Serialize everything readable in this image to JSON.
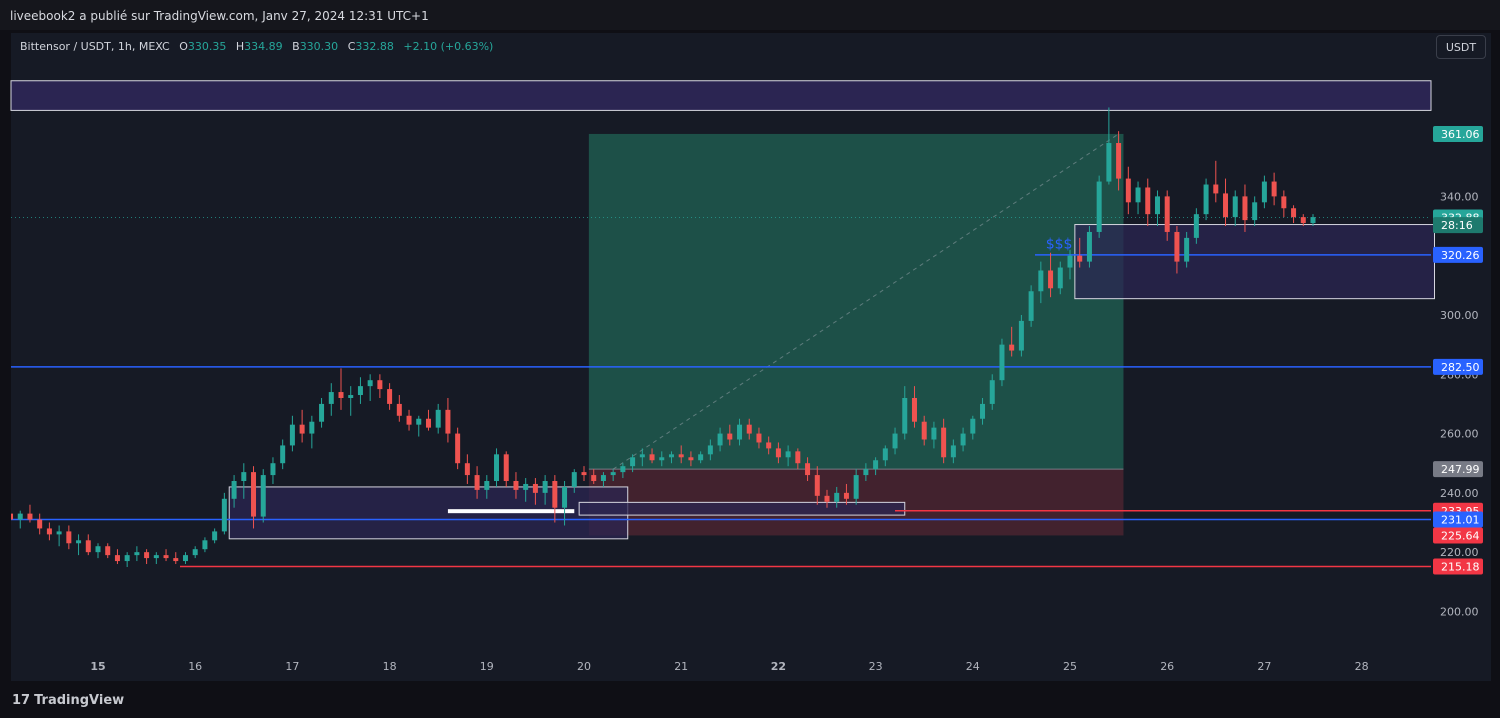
{
  "header": {
    "publisher_text": "liveebook2 a publié sur TradingView.com, Janv 27, 2024 12:31 UTC+1"
  },
  "legend": {
    "symbol": "Bittensor / USDT, 1h, MEXC",
    "open_label": "O",
    "open": "330.35",
    "high_label": "H",
    "high": "334.89",
    "low_label": "B",
    "low": "330.30",
    "close_label": "C",
    "close": "332.88",
    "change": "+2.10 (+0.63%)"
  },
  "currency_button": "USDT",
  "footer": {
    "brand": "TradingView"
  },
  "annotation_text": "$$$",
  "colors": {
    "up": "#26a69a",
    "down": "#ef5350",
    "level_blue": "#2962ff",
    "level_red": "#f23645",
    "zone": "#2b2552",
    "profit": "#1e5a4f",
    "loss": "#4a2430"
  },
  "chart_data": {
    "type": "candlestick",
    "title": "Bittensor / USDT, 1h, MEXC",
    "x_ticks": [
      "15",
      "16",
      "17",
      "18",
      "19",
      "20",
      "21",
      "22",
      "23",
      "24",
      "25",
      "26",
      "27",
      "28"
    ],
    "y_ticks": [
      "200.00",
      "220.00",
      "240.00",
      "260.00",
      "280.00",
      "300.00",
      "340.00"
    ],
    "ylim": [
      187,
      386
    ],
    "series": [
      {
        "values": [
          [
            14.1,
            233,
            235,
            229,
            231
          ],
          [
            14.2,
            231,
            234,
            228,
            233
          ],
          [
            14.3,
            233,
            236,
            230,
            231
          ],
          [
            14.4,
            231,
            233,
            226,
            228
          ],
          [
            14.5,
            228,
            230,
            224,
            226
          ],
          [
            14.6,
            226,
            229,
            222,
            227
          ],
          [
            14.7,
            227,
            229,
            221,
            223
          ],
          [
            14.8,
            223,
            226,
            219,
            224
          ],
          [
            14.9,
            224,
            226,
            219,
            220
          ],
          [
            15.0,
            220,
            223,
            218,
            222
          ],
          [
            15.1,
            222,
            223,
            218,
            219
          ],
          [
            15.2,
            219,
            221,
            216,
            217
          ],
          [
            15.3,
            217,
            220,
            215,
            219
          ],
          [
            15.4,
            219,
            222,
            217,
            220
          ],
          [
            15.5,
            220,
            221,
            216,
            218
          ],
          [
            15.6,
            218,
            220,
            216,
            219
          ],
          [
            15.7,
            219,
            221,
            217,
            218
          ],
          [
            15.8,
            218,
            220,
            216,
            217
          ],
          [
            15.9,
            217,
            220,
            216,
            219
          ],
          [
            16.0,
            219,
            222,
            218,
            221
          ],
          [
            16.1,
            221,
            225,
            220,
            224
          ],
          [
            16.2,
            224,
            228,
            223,
            227
          ],
          [
            16.3,
            227,
            240,
            226,
            238
          ],
          [
            16.4,
            238,
            246,
            235,
            244
          ],
          [
            16.5,
            244,
            250,
            238,
            247
          ],
          [
            16.6,
            247,
            249,
            228,
            232
          ],
          [
            16.7,
            232,
            248,
            230,
            246
          ],
          [
            16.8,
            246,
            252,
            243,
            250
          ],
          [
            16.9,
            250,
            258,
            248,
            256
          ],
          [
            17.0,
            256,
            266,
            254,
            263
          ],
          [
            17.1,
            263,
            268,
            257,
            260
          ],
          [
            17.2,
            260,
            266,
            255,
            264
          ],
          [
            17.3,
            264,
            272,
            262,
            270
          ],
          [
            17.4,
            270,
            277,
            266,
            274
          ],
          [
            17.5,
            274,
            282,
            268,
            272
          ],
          [
            17.6,
            272,
            276,
            266,
            273
          ],
          [
            17.7,
            273,
            279,
            270,
            276
          ],
          [
            17.8,
            276,
            280,
            271,
            278
          ],
          [
            17.9,
            278,
            280,
            272,
            275
          ],
          [
            18.0,
            275,
            277,
            268,
            270
          ],
          [
            18.1,
            270,
            273,
            264,
            266
          ],
          [
            18.2,
            266,
            268,
            261,
            263
          ],
          [
            18.3,
            263,
            266,
            259,
            265
          ],
          [
            18.4,
            265,
            268,
            261,
            262
          ],
          [
            18.5,
            262,
            270,
            260,
            268
          ],
          [
            18.6,
            268,
            272,
            257,
            260
          ],
          [
            18.7,
            260,
            262,
            248,
            250
          ],
          [
            18.8,
            250,
            253,
            243,
            246
          ],
          [
            18.9,
            246,
            249,
            238,
            241
          ],
          [
            19.0,
            241,
            246,
            238,
            244
          ],
          [
            19.1,
            244,
            255,
            242,
            253
          ],
          [
            19.2,
            253,
            254,
            242,
            244
          ],
          [
            19.3,
            244,
            247,
            238,
            241
          ],
          [
            19.4,
            241,
            245,
            237,
            243
          ],
          [
            19.5,
            243,
            245,
            236,
            240
          ],
          [
            19.6,
            240,
            246,
            236,
            244
          ],
          [
            19.7,
            244,
            246,
            230,
            235
          ],
          [
            19.8,
            235,
            244,
            229,
            242
          ],
          [
            19.9,
            242,
            248,
            240,
            247
          ],
          [
            20.0,
            247,
            249,
            244,
            246
          ],
          [
            20.1,
            246,
            248,
            243,
            244
          ],
          [
            20.2,
            244,
            247,
            242,
            246
          ],
          [
            20.3,
            246,
            248,
            244,
            247
          ],
          [
            20.4,
            247,
            250,
            245,
            249
          ],
          [
            20.5,
            249,
            253,
            247,
            252
          ],
          [
            20.6,
            252,
            255,
            249,
            253
          ],
          [
            20.7,
            253,
            255,
            250,
            251
          ],
          [
            20.8,
            251,
            254,
            249,
            252
          ],
          [
            20.9,
            252,
            254,
            250,
            253
          ],
          [
            21.0,
            253,
            256,
            250,
            252
          ],
          [
            21.1,
            252,
            254,
            249,
            251
          ],
          [
            21.2,
            251,
            254,
            250,
            253
          ],
          [
            21.3,
            253,
            258,
            251,
            256
          ],
          [
            21.4,
            256,
            262,
            254,
            260
          ],
          [
            21.5,
            260,
            263,
            256,
            258
          ],
          [
            21.6,
            258,
            265,
            256,
            263
          ],
          [
            21.7,
            263,
            265,
            258,
            260
          ],
          [
            21.8,
            260,
            262,
            255,
            257
          ],
          [
            21.9,
            257,
            259,
            253,
            255
          ],
          [
            22.0,
            255,
            257,
            250,
            252
          ],
          [
            22.1,
            252,
            256,
            249,
            254
          ],
          [
            22.2,
            254,
            255,
            248,
            250
          ],
          [
            22.3,
            250,
            252,
            244,
            246
          ],
          [
            22.4,
            246,
            249,
            236,
            239
          ],
          [
            22.5,
            239,
            241,
            235,
            237
          ],
          [
            22.6,
            237,
            242,
            235,
            240
          ],
          [
            22.7,
            240,
            243,
            236,
            238
          ],
          [
            22.8,
            238,
            248,
            236,
            246
          ],
          [
            22.9,
            246,
            250,
            244,
            248
          ],
          [
            23.0,
            248,
            252,
            246,
            251
          ],
          [
            23.1,
            251,
            256,
            249,
            255
          ],
          [
            23.2,
            255,
            262,
            253,
            260
          ],
          [
            23.3,
            260,
            276,
            258,
            272
          ],
          [
            23.4,
            272,
            276,
            262,
            264
          ],
          [
            23.5,
            264,
            266,
            256,
            258
          ],
          [
            23.6,
            258,
            264,
            255,
            262
          ],
          [
            23.7,
            262,
            265,
            250,
            252
          ],
          [
            23.8,
            252,
            258,
            250,
            256
          ],
          [
            23.9,
            256,
            262,
            254,
            260
          ],
          [
            24.0,
            260,
            266,
            258,
            265
          ],
          [
            24.1,
            265,
            272,
            263,
            270
          ],
          [
            24.2,
            270,
            280,
            268,
            278
          ],
          [
            24.3,
            278,
            292,
            276,
            290
          ],
          [
            24.4,
            290,
            296,
            286,
            288
          ],
          [
            24.5,
            288,
            300,
            286,
            298
          ],
          [
            24.6,
            298,
            310,
            296,
            308
          ],
          [
            24.7,
            308,
            318,
            304,
            315
          ],
          [
            24.8,
            315,
            321,
            306,
            309
          ],
          [
            24.9,
            309,
            318,
            307,
            316
          ],
          [
            25.0,
            316,
            322,
            312,
            320
          ],
          [
            25.1,
            320,
            326,
            316,
            318
          ],
          [
            25.2,
            318,
            330,
            316,
            328
          ],
          [
            25.3,
            328,
            347,
            326,
            345
          ],
          [
            25.4,
            345,
            370,
            344,
            358
          ],
          [
            25.5,
            358,
            362,
            342,
            346
          ],
          [
            25.6,
            346,
            350,
            334,
            338
          ],
          [
            25.7,
            338,
            345,
            334,
            343
          ],
          [
            25.8,
            343,
            346,
            330,
            334
          ],
          [
            25.9,
            334,
            342,
            330,
            340
          ],
          [
            26.0,
            340,
            342,
            325,
            328
          ],
          [
            26.1,
            328,
            330,
            314,
            318
          ],
          [
            26.2,
            318,
            328,
            316,
            326
          ],
          [
            26.3,
            326,
            336,
            324,
            334
          ],
          [
            26.4,
            334,
            346,
            332,
            344
          ],
          [
            26.5,
            344,
            352,
            338,
            341
          ],
          [
            26.6,
            341,
            346,
            330,
            333
          ],
          [
            26.7,
            333,
            342,
            330,
            340
          ],
          [
            26.8,
            340,
            344,
            328,
            332
          ],
          [
            26.9,
            332,
            340,
            330,
            338
          ],
          [
            27.0,
            338,
            347,
            336,
            345
          ],
          [
            27.1,
            345,
            348,
            337,
            340
          ],
          [
            27.2,
            340,
            342,
            333,
            336
          ],
          [
            27.3,
            336,
            337,
            331,
            333
          ],
          [
            27.4,
            333,
            334,
            330,
            331
          ],
          [
            27.5,
            331,
            334,
            330,
            333
          ]
        ]
      }
    ]
  },
  "overlays": {
    "price_labels": [
      {
        "text": "361.06",
        "price": 361.06,
        "bg": "#26a69a"
      },
      {
        "text": "332.88",
        "price": 332.88,
        "bg": "#26a69a"
      },
      {
        "text": "28:16",
        "price": 330.3,
        "bg": "#1e7a6e"
      },
      {
        "text": "320.26",
        "price": 320.26,
        "bg": "#2962ff"
      },
      {
        "text": "282.50",
        "price": 282.5,
        "bg": "#2962ff"
      },
      {
        "text": "247.99",
        "price": 247.99,
        "bg": "#787b86"
      },
      {
        "text": "233.95",
        "price": 233.95,
        "bg": "#f23645"
      },
      {
        "text": "231.01",
        "price": 231.01,
        "bg": "#2962ff"
      },
      {
        "text": "225.64",
        "price": 225.64,
        "bg": "#f23645"
      },
      {
        "text": "215.18",
        "price": 215.18,
        "bg": "#f23645"
      }
    ],
    "h_levels": [
      {
        "price": 282.5,
        "color": "#2962ff",
        "x0": 11
      },
      {
        "price": 231.01,
        "color": "#2962ff",
        "x0": 11
      },
      {
        "price": 215.18,
        "color": "#f23645",
        "x0": 180
      },
      {
        "price": 233.95,
        "color": "#f23645",
        "x0": 895
      },
      {
        "price": 320.26,
        "color": "#2962ff",
        "x0": 1035
      }
    ],
    "position": {
      "t0": 20.05,
      "t1": 25.55,
      "entry": 247.99,
      "target": 361.06,
      "stop": 225.64
    },
    "zones": [
      {
        "t0": 16.35,
        "t1": 20.45,
        "p0": 242,
        "p1": 224.5
      },
      {
        "t0": 25.05,
        "t1": 28.75,
        "p0": 330.5,
        "p1": 305.5
      },
      {
        "t0": 19.95,
        "t1": 23.3,
        "p0": 236.8,
        "p1": 232.5
      }
    ],
    "top_band": {
      "p0": 379,
      "p1": 369
    }
  }
}
